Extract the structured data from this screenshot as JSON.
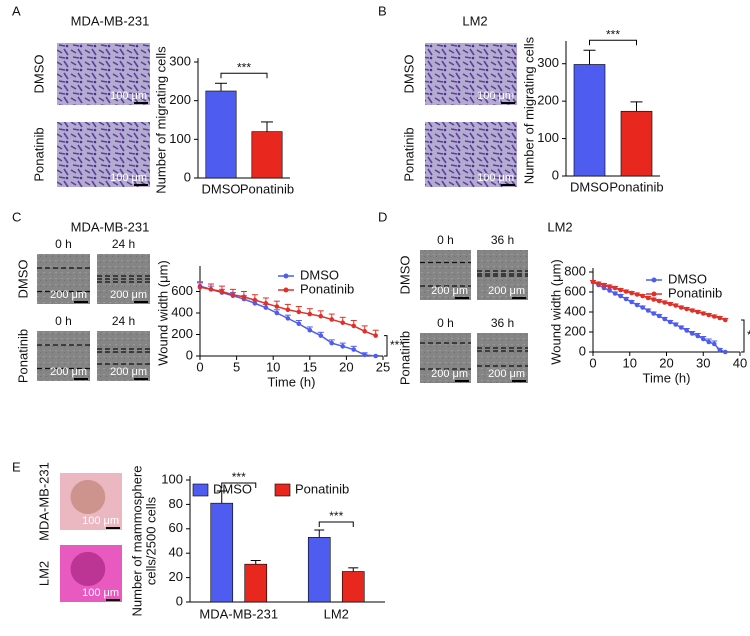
{
  "panel_letters": [
    "A",
    "B",
    "C",
    "D",
    "E"
  ],
  "image_panels": [
    {
      "row_labels": [
        "DMSO",
        "Ponatinib"
      ],
      "scale": "100 μm"
    },
    {
      "row_labels": [
        "DMSO",
        "Ponatinib"
      ],
      "scale": "100 μm"
    },
    {
      "row_labels": [
        "DMSO",
        "Ponatinib"
      ],
      "times": [
        "0 h",
        "24 h"
      ],
      "scale": "200 μm"
    },
    {
      "row_labels": [
        "DMSO",
        "Ponatinib"
      ],
      "times": [
        "0 h",
        "36 h"
      ],
      "scale": "200 μm"
    },
    {
      "row_labels": [
        "MDA-MB-231",
        "LM2"
      ],
      "scale": "100 μm"
    }
  ],
  "chart_data": [
    {
      "type": "bar",
      "title": "MDA-MB-231",
      "ylabel": "Number of migrating cells",
      "categories": [
        "DMSO",
        "Ponatinib"
      ],
      "values": [
        225,
        120
      ],
      "errors": [
        20,
        25
      ],
      "colors": [
        "#4e5cf0",
        "#e8281e"
      ],
      "ylim": [
        0,
        300
      ],
      "yticks": [
        0,
        100,
        200,
        300
      ],
      "annotation": "***"
    },
    {
      "type": "bar",
      "title": "LM2",
      "ylabel": "Number of migrating cells",
      "categories": [
        "DMSO",
        "Ponatinib"
      ],
      "values": [
        298,
        173
      ],
      "errors": [
        38,
        25
      ],
      "colors": [
        "#4e5cf0",
        "#e8281e"
      ],
      "ylim": [
        0,
        350
      ],
      "yticks": [
        0,
        100,
        200,
        300
      ],
      "annotation": "***"
    },
    {
      "type": "line",
      "title": "MDA-MB-231",
      "xlabel": "Time (h)",
      "ylabel": "Wound width (μm)",
      "x": [
        0,
        1.5,
        3,
        4.5,
        6,
        7.5,
        9,
        10.5,
        12,
        13.5,
        15,
        16.5,
        18,
        19.5,
        21,
        22.5,
        24
      ],
      "series": [
        {
          "name": "DMSO",
          "color": "#4e5cf0",
          "values": [
            650,
            620,
            590,
            560,
            530,
            490,
            450,
            400,
            350,
            300,
            240,
            190,
            120,
            90,
            60,
            10,
            0
          ],
          "errors": [
            30,
            30,
            30,
            30,
            30,
            30,
            30,
            30,
            30,
            30,
            30,
            30,
            30,
            30,
            30,
            20,
            5
          ]
        },
        {
          "name": "Ponatinib",
          "color": "#e0302a",
          "values": [
            640,
            620,
            600,
            570,
            550,
            520,
            490,
            460,
            430,
            410,
            390,
            370,
            340,
            310,
            280,
            230,
            190
          ],
          "errors": [
            50,
            50,
            50,
            50,
            50,
            50,
            50,
            50,
            50,
            50,
            50,
            50,
            50,
            50,
            50,
            50,
            50
          ]
        }
      ],
      "xlim": [
        0,
        25
      ],
      "xticks": [
        0,
        5,
        10,
        15,
        20,
        25
      ],
      "ylim": [
        0,
        800
      ],
      "yticks": [
        0,
        200,
        400,
        600
      ],
      "annotation": "***"
    },
    {
      "type": "line",
      "title": "LM2",
      "xlabel": "Time (h)",
      "ylabel": "Wound width (μm)",
      "x": [
        0,
        1.5,
        3,
        4.5,
        6,
        7.5,
        9,
        10.5,
        12,
        13.5,
        15,
        16.5,
        18,
        19.5,
        21,
        22.5,
        24,
        25.5,
        27,
        28.5,
        30,
        31.5,
        33,
        34.5,
        36
      ],
      "series": [
        {
          "name": "DMSO",
          "color": "#4e5cf0",
          "values": [
            700,
            670,
            640,
            615,
            585,
            560,
            530,
            500,
            470,
            445,
            415,
            385,
            360,
            330,
            300,
            275,
            245,
            215,
            185,
            160,
            130,
            100,
            80,
            20,
            0
          ],
          "errors": [
            15,
            15,
            15,
            15,
            15,
            15,
            15,
            15,
            15,
            15,
            15,
            15,
            15,
            15,
            15,
            15,
            15,
            20,
            20,
            25,
            25,
            30,
            30,
            15,
            5
          ]
        },
        {
          "name": "Ponatinib",
          "color": "#e0302a",
          "values": [
            700,
            685,
            670,
            655,
            640,
            620,
            605,
            590,
            575,
            560,
            540,
            525,
            510,
            495,
            480,
            465,
            445,
            430,
            415,
            400,
            385,
            370,
            355,
            340,
            320
          ],
          "errors": [
            15,
            15,
            15,
            15,
            15,
            15,
            15,
            15,
            15,
            15,
            15,
            15,
            15,
            15,
            15,
            15,
            15,
            15,
            15,
            15,
            15,
            15,
            15,
            15,
            15
          ]
        }
      ],
      "xlim": [
        0,
        40
      ],
      "xticks": [
        0,
        10,
        20,
        30,
        40
      ],
      "ylim": [
        0,
        800
      ],
      "yticks": [
        0,
        200,
        400,
        600,
        800
      ],
      "annotation": "***"
    },
    {
      "type": "bar",
      "ylabel": [
        "Number of mammosphere",
        "cells/2500 cells"
      ],
      "categories": [
        "MDA-MB-231",
        "LM2"
      ],
      "series": [
        {
          "name": "DMSO",
          "color": "#4e5cf0",
          "values": [
            81,
            53
          ],
          "errors": [
            10,
            6
          ]
        },
        {
          "name": "Ponatinib",
          "color": "#e8281e",
          "values": [
            31,
            25
          ],
          "errors": [
            3,
            3
          ]
        }
      ],
      "ylim": [
        0,
        100
      ],
      "yticks": [
        0,
        20,
        40,
        60,
        80,
        100
      ],
      "annotations": [
        "***",
        "***"
      ]
    }
  ]
}
